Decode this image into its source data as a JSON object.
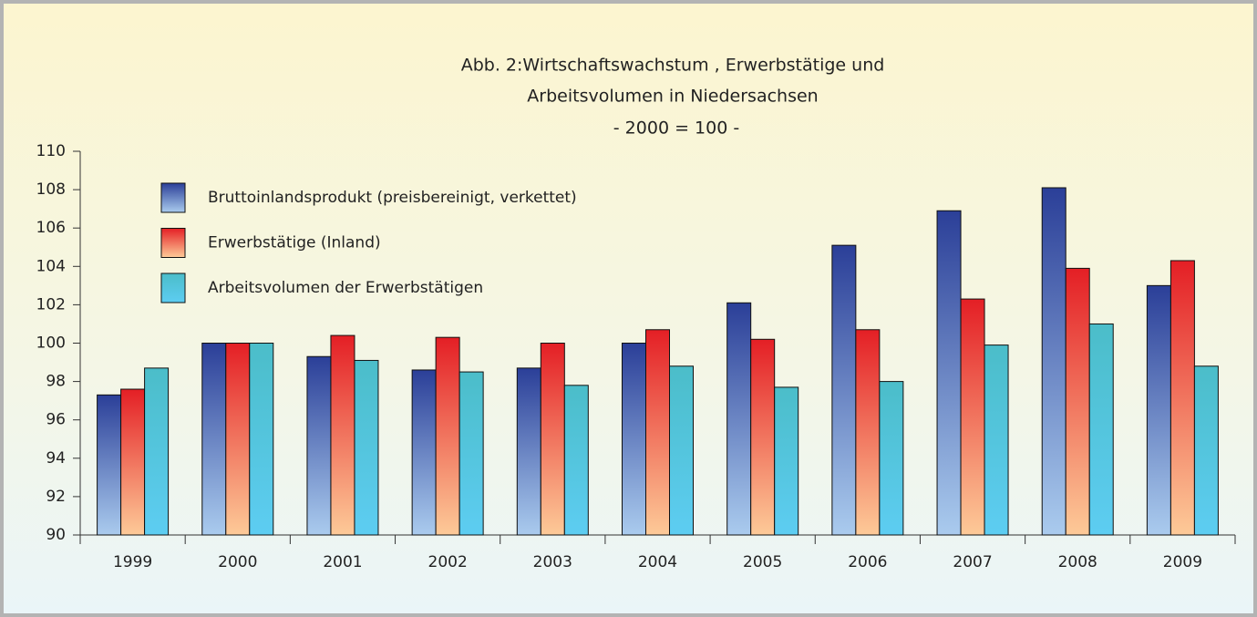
{
  "chart_data": {
    "type": "bar",
    "title": [
      "Abb. 2:Wirtschaftswachstum , Erwerbstätige und",
      "Arbeitsvolumen in Niedersachsen"
    ],
    "subtitle": "- 2000 = 100 -",
    "categories": [
      "1999",
      "2000",
      "2001",
      "2002",
      "2003",
      "2004",
      "2005",
      "2006",
      "2007",
      "2008",
      "2009"
    ],
    "series": [
      {
        "name": "Bruttoinlandsprodukt (preisbereinigt, verkettet)",
        "color": "#2b3f98",
        "color_light": "#aacbee",
        "values": [
          97.3,
          100,
          99.3,
          98.6,
          98.7,
          100,
          102.1,
          105.1,
          106.9,
          108.1,
          103.0
        ]
      },
      {
        "name": "Erwerbstätige (Inland)",
        "color": "#e41f25",
        "color_light": "#fdca98",
        "values": [
          97.6,
          100,
          100.4,
          100.3,
          100,
          100.7,
          100.2,
          100.7,
          102.3,
          103.9,
          104.3
        ]
      },
      {
        "name": "Arbeitsvolumen der Erwerbstätigen",
        "color": "#4bbdc9",
        "color_light": "#5dcdf2",
        "values": [
          98.7,
          100,
          99.1,
          98.5,
          97.8,
          98.8,
          97.7,
          98.0,
          99.9,
          101.0,
          98.8
        ]
      }
    ],
    "ylim": [
      90,
      110
    ],
    "yticks": [
      90,
      92,
      94,
      96,
      98,
      100,
      102,
      104,
      106,
      108,
      110
    ],
    "grid": false,
    "legend": "upper left"
  }
}
